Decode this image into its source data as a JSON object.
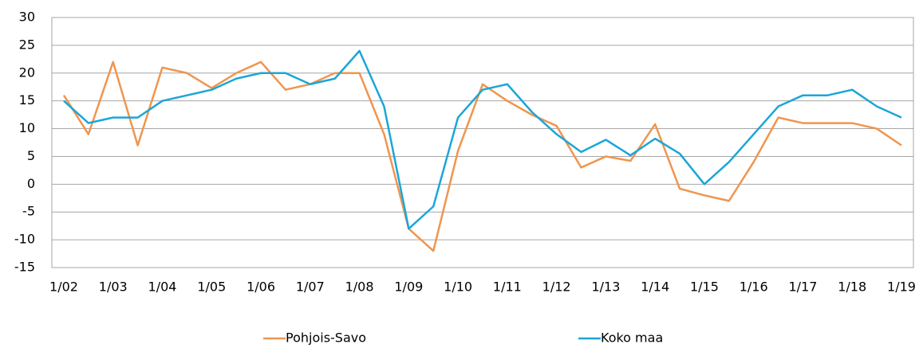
{
  "chart_data": {
    "type": "line",
    "categories": [
      "1/02",
      null,
      "1/03",
      null,
      "1/04",
      null,
      "1/05",
      null,
      "1/06",
      null,
      "1/07",
      null,
      "1/08",
      null,
      "1/09",
      null,
      "1/10",
      null,
      "1/11",
      null,
      "1/12",
      null,
      "1/13",
      null,
      "1/14",
      null,
      "1/15",
      null,
      "1/16",
      null,
      "1/17",
      null,
      "1/18",
      null,
      "1/19"
    ],
    "series": [
      {
        "name": "Pohjois-Savo",
        "color": "#f0954e",
        "values": [
          16,
          9,
          22,
          7,
          21,
          20,
          17.3,
          20,
          22,
          17,
          18,
          20,
          20,
          9,
          -8,
          -12,
          6,
          18,
          15,
          12.5,
          10.5,
          3,
          5,
          4.2,
          10.8,
          -0.8,
          -2,
          -3,
          4,
          12,
          11,
          11,
          11,
          10,
          7
        ]
      },
      {
        "name": "Koko maa",
        "color": "#1ba6d8",
        "values": [
          15,
          11,
          12,
          12,
          15,
          16,
          17,
          19,
          20,
          20,
          18,
          19,
          24,
          14,
          -8,
          -4,
          12,
          17,
          18,
          13,
          9,
          5.8,
          8,
          5.2,
          8.2,
          5.5,
          0,
          4,
          9,
          14,
          16,
          16,
          17,
          14,
          12
        ]
      }
    ],
    "ylim": [
      -15,
      30
    ],
    "yticks": [
      -15,
      -10,
      -5,
      0,
      5,
      10,
      15,
      20,
      25,
      30
    ],
    "grid": true,
    "legend": "bottom"
  }
}
